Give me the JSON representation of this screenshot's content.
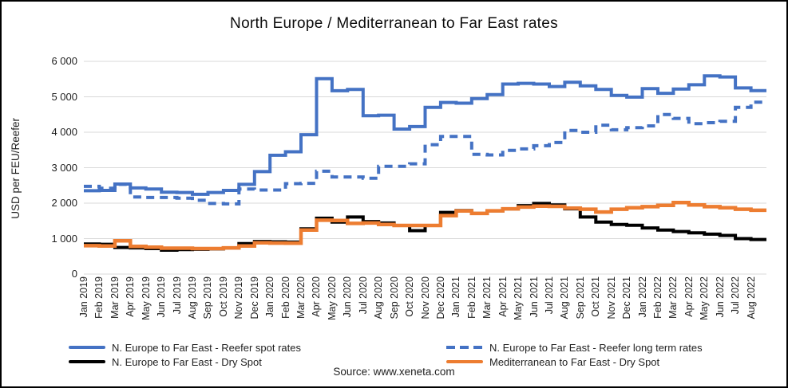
{
  "chart_data": {
    "type": "line",
    "title": "North Europe / Mediterranean to Far East rates",
    "ylabel": "USD per FEU/Reefer",
    "ylim": [
      0,
      6000
    ],
    "grid": "horizontal-only",
    "legend_position": "bottom",
    "step_rendering": true,
    "gridline_color": "#d9d9d9",
    "y_ticks": [
      {
        "value": 6000,
        "label": "6 000"
      },
      {
        "value": 5000,
        "label": "5 000"
      },
      {
        "value": 4000,
        "label": "4 000"
      },
      {
        "value": 3000,
        "label": "3 000"
      },
      {
        "value": 2000,
        "label": "2 000"
      },
      {
        "value": 1000,
        "label": "1 000"
      },
      {
        "value": 0,
        "label": "0"
      }
    ],
    "categories": [
      "Jan 2019",
      "Feb 2019",
      "Mar 2019",
      "Apr 2019",
      "May 2019",
      "Jun 2019",
      "Jul 2019",
      "Aug 2019",
      "Sep 2019",
      "Oct 2019",
      "Nov 2019",
      "Dec 2019",
      "Jan 2020",
      "Feb 2020",
      "Mar 2020",
      "Apr 2020",
      "May 2020",
      "Jun 2020",
      "Jul 2020",
      "Aug 2020",
      "Sep 2020",
      "Oct 2020",
      "Nov 2020",
      "Dec 2020",
      "Jan 2021",
      "Feb 2021",
      "Mar 2021",
      "Apr 2021",
      "May 2021",
      "Jun 2021",
      "Jul 2021",
      "Aug 2021",
      "Sep 2021",
      "Oct 2021",
      "Nov 2021",
      "Dec 2021",
      "Jan 2022",
      "Feb 2022",
      "Mar 2022",
      "Apr 2022",
      "May 2022",
      "Jun 2022",
      "Jul 2022",
      "Aug 2022"
    ],
    "series": [
      {
        "name": "N. Europe to Far East - Reefer spot rates",
        "color": "#4472C4",
        "style": "solid",
        "width": 4,
        "values": [
          2350,
          2360,
          2540,
          2430,
          2400,
          2310,
          2300,
          2250,
          2300,
          2360,
          2530,
          2890,
          3350,
          3450,
          3930,
          5510,
          5170,
          5210,
          4465,
          4480,
          4090,
          4160,
          4700,
          4840,
          4820,
          4950,
          5060,
          5360,
          5380,
          5360,
          5290,
          5410,
          5310,
          5210,
          5040,
          4990,
          5230,
          5100,
          5220,
          5340,
          5590,
          5560,
          5250,
          5175
        ]
      },
      {
        "name": "N. Europe to Far East - Reefer long term rates",
        "color": "#4472C4",
        "style": "dashed",
        "width": 4,
        "values": [
          2475,
          2420,
          2530,
          2175,
          2160,
          2160,
          2140,
          2080,
          1990,
          1980,
          2400,
          2370,
          2370,
          2550,
          2560,
          2900,
          2740,
          2740,
          2700,
          3040,
          3040,
          3110,
          3650,
          3880,
          3880,
          3375,
          3360,
          3490,
          3530,
          3620,
          3710,
          4050,
          4000,
          4200,
          4070,
          4130,
          4180,
          4500,
          4390,
          4240,
          4270,
          4310,
          4700,
          4850
        ]
      },
      {
        "name": "N. Europe to Far East - Dry Spot",
        "color": "#000000",
        "style": "solid",
        "width": 4,
        "values": [
          850,
          840,
          750,
          740,
          720,
          675,
          690,
          700,
          710,
          740,
          860,
          920,
          910,
          900,
          1275,
          1575,
          1465,
          1610,
          1480,
          1440,
          1370,
          1225,
          1370,
          1740,
          1790,
          1710,
          1785,
          1840,
          1930,
          1990,
          1950,
          1840,
          1610,
          1465,
          1400,
          1375,
          1300,
          1240,
          1200,
          1165,
          1125,
          1090,
          1000,
          975
        ]
      },
      {
        "name": "Mediterranean to Far East - Dry Spot",
        "color": "#ED7D31",
        "style": "solid",
        "width": 4.5,
        "values": [
          800,
          790,
          940,
          780,
          760,
          730,
          730,
          720,
          720,
          740,
          790,
          880,
          875,
          870,
          1240,
          1520,
          1510,
          1430,
          1440,
          1400,
          1370,
          1370,
          1370,
          1650,
          1780,
          1710,
          1785,
          1840,
          1890,
          1915,
          1910,
          1860,
          1830,
          1750,
          1830,
          1870,
          1900,
          1940,
          2015,
          1950,
          1900,
          1870,
          1830,
          1800
        ]
      }
    ]
  },
  "source": {
    "text": "Source: www.xeneta.com"
  }
}
